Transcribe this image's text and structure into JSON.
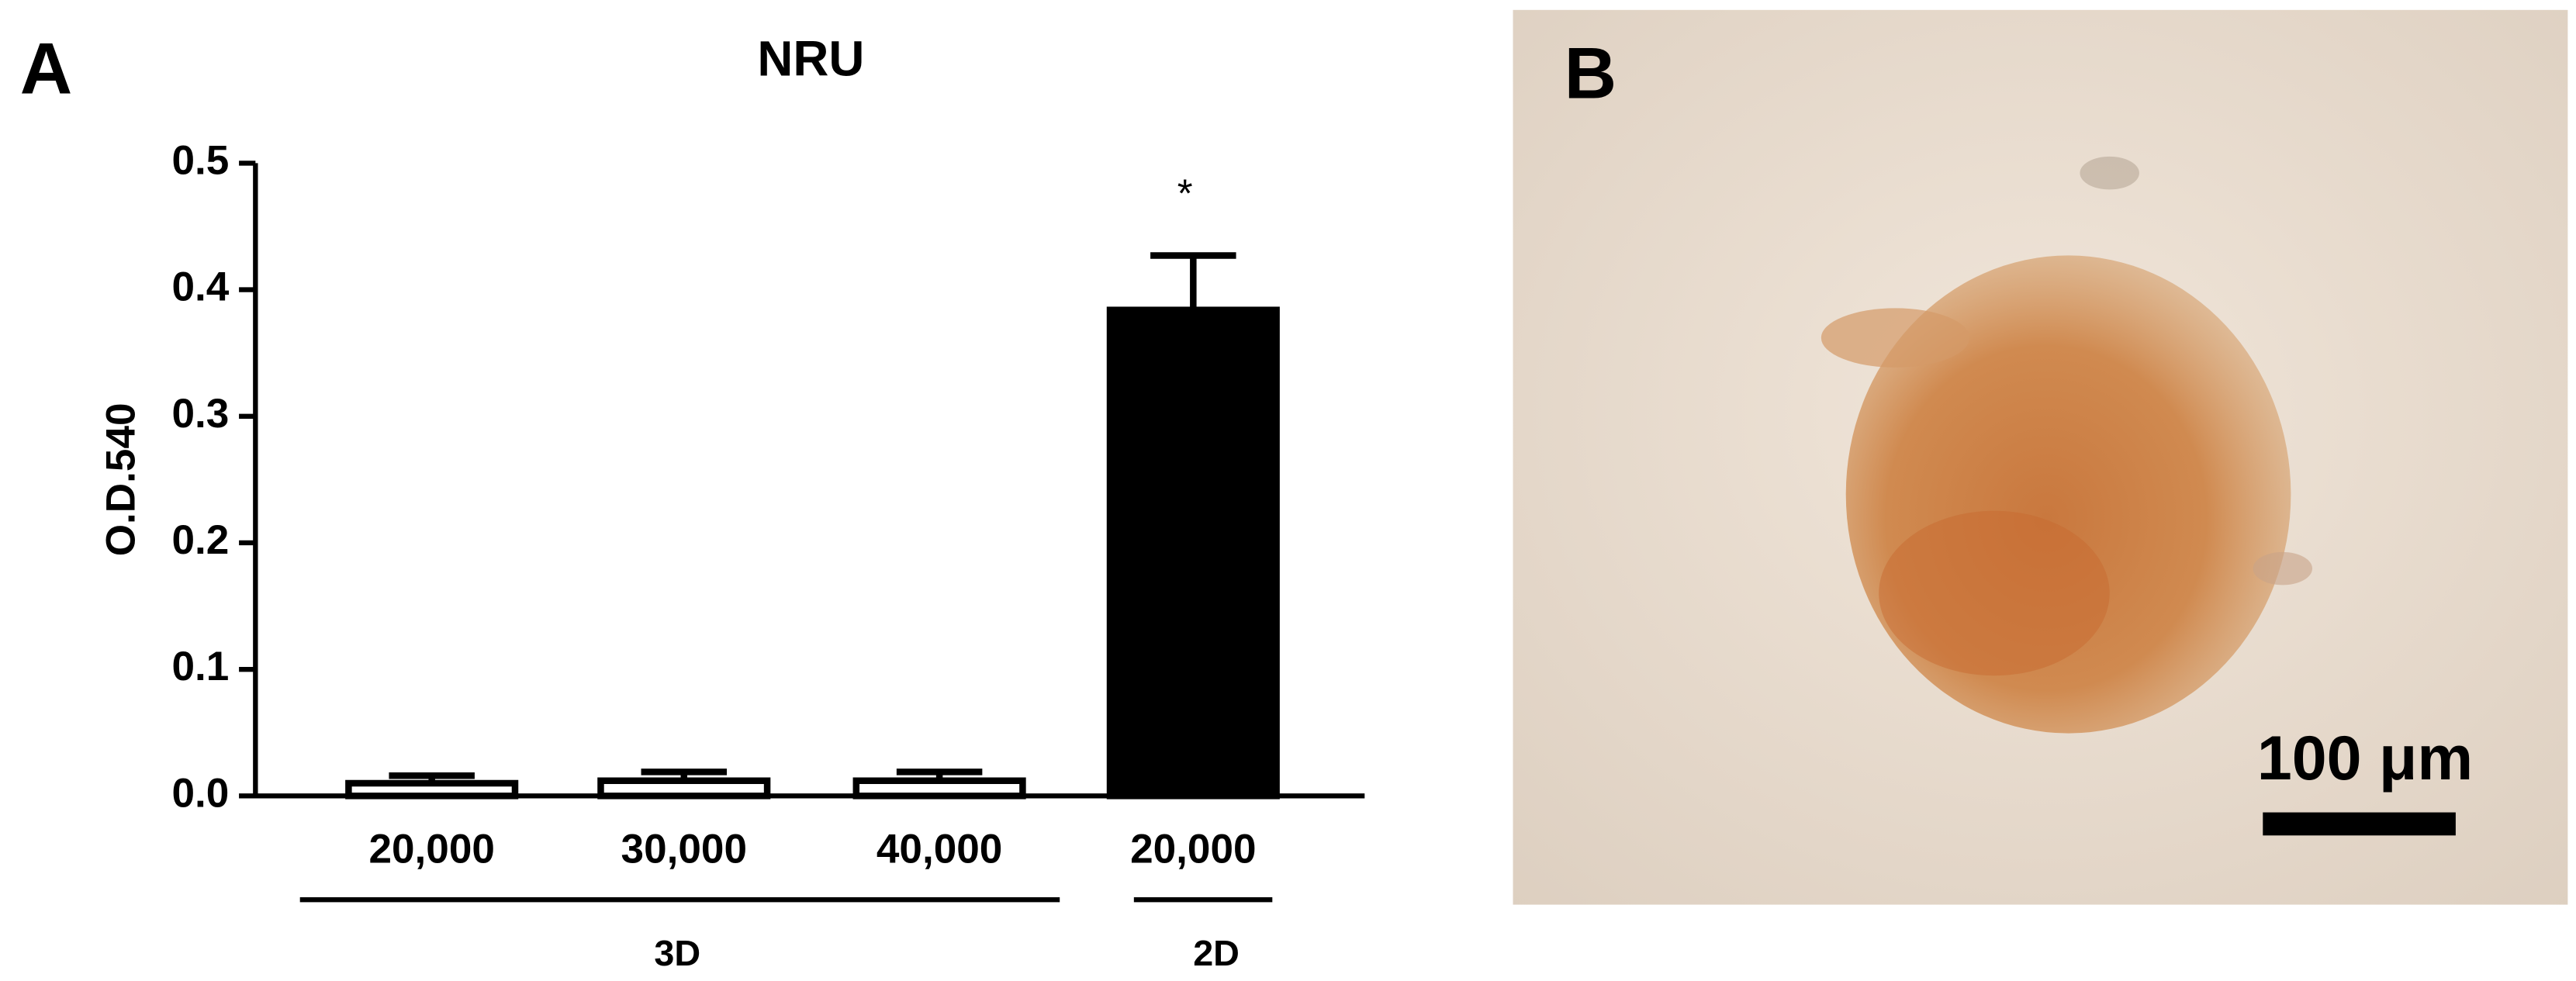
{
  "panel_labels": [
    "A",
    "B"
  ],
  "image": {
    "scale_bar_label": "100 μm"
  },
  "chart_data": {
    "type": "bar",
    "title": "NRU",
    "y_label": "O.D.540",
    "categories": [
      "20,000",
      "30,000",
      "40,000",
      "20,000"
    ],
    "category_groups": [
      "3D",
      "3D",
      "3D",
      "2D"
    ],
    "values": [
      0.01,
      0.012,
      0.012,
      0.384
    ],
    "errors": [
      0.006,
      0.007,
      0.007,
      0.043
    ],
    "value_annotations": [
      null,
      null,
      null,
      "*"
    ],
    "colors": [
      "#ffffff",
      "#ffffff",
      "#ffffff",
      "#000000"
    ],
    "ylim": [
      0,
      0.5
    ],
    "yticks": [
      {
        "value": 0,
        "label": "0.0"
      },
      0.1,
      0.2,
      0.3,
      0.4,
      0.5
    ]
  }
}
